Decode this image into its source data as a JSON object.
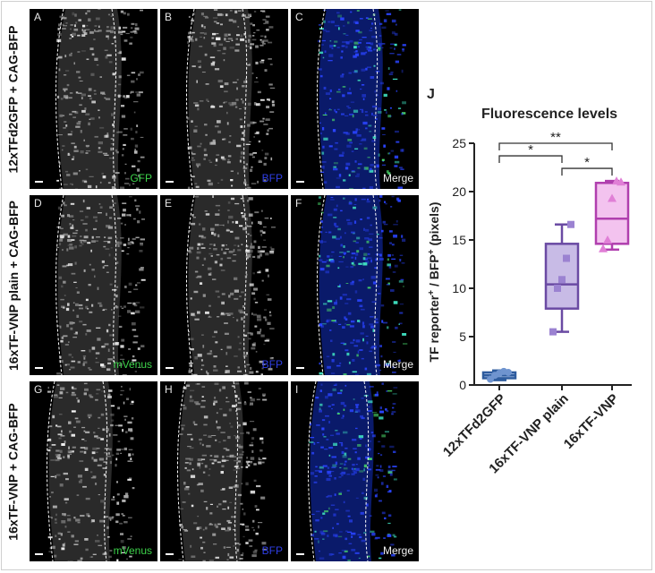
{
  "figure": {
    "rows": [
      {
        "label": "12xTFd2GFP + CAG-BFP",
        "panels": [
          {
            "letter": "A",
            "channel": "GFP",
            "channel_color": "#3cd24a",
            "tint": "gray"
          },
          {
            "letter": "B",
            "channel": "BFP",
            "channel_color": "#2f3fe6",
            "tint": "gray"
          },
          {
            "letter": "C",
            "channel": "Merge",
            "channel_color": "#f0f0f0",
            "tint": "blue"
          }
        ]
      },
      {
        "label": "16xTF-VNP plain + CAG-BFP",
        "panels": [
          {
            "letter": "D",
            "channel": "mVenus",
            "channel_color": "#3cd24a",
            "tint": "gray"
          },
          {
            "letter": "E",
            "channel": "BFP",
            "channel_color": "#2f3fe6",
            "tint": "gray"
          },
          {
            "letter": "F",
            "channel": "Merge",
            "channel_color": "#f0f0f0",
            "tint": "blue"
          }
        ]
      },
      {
        "label": "16xTF-VNP + CAG-BFP",
        "panels": [
          {
            "letter": "G",
            "channel": "mVenus",
            "channel_color": "#3cd24a",
            "tint": "gray"
          },
          {
            "letter": "H",
            "channel": "BFP",
            "channel_color": "#2f3fe6",
            "tint": "gray"
          },
          {
            "letter": "I",
            "channel": "Merge",
            "channel_color": "#f0f0f0",
            "tint": "blue"
          }
        ]
      }
    ]
  },
  "chart_data": {
    "type": "box",
    "panel_letter": "J",
    "title": "Fluorescence levels",
    "ylabel_parts": [
      "TF reporter",
      "+",
      " / BFP",
      "+",
      " (pixels)"
    ],
    "ylim": [
      0,
      25
    ],
    "yticks": [
      0,
      5,
      10,
      15,
      20,
      25
    ],
    "categories": [
      "12xTFd2GFP",
      "16xTF-VNP plain",
      "16xTF-VNP"
    ],
    "series": [
      {
        "category": "12xTFd2GFP",
        "min": 0.5,
        "q1": 0.7,
        "median": 1.0,
        "q3": 1.3,
        "max": 1.5,
        "points": [
          0.6,
          1.0,
          1.2,
          1.4,
          1.3
        ],
        "color": "#2e5c9e",
        "fill": "#a9c0e6"
      },
      {
        "category": "16xTF-VNP plain",
        "min": 5.5,
        "q1": 7.9,
        "median": 10.4,
        "q3": 14.6,
        "max": 16.6,
        "points": [
          5.5,
          10.0,
          10.9,
          13.1,
          16.6
        ],
        "color": "#6a4aa3",
        "fill": "#c8bbe6"
      },
      {
        "category": "16xTF-VNP",
        "min": 14.0,
        "q1": 14.6,
        "median": 17.2,
        "q3": 20.9,
        "max": 21.1,
        "points": [
          14.1,
          15.0,
          19.3,
          21.1,
          21.0
        ],
        "color": "#b03fae",
        "fill": "#f3c3ef"
      }
    ],
    "significance": [
      {
        "from": 0,
        "to": 2,
        "label": "**",
        "level": 25.0
      },
      {
        "from": 0,
        "to": 1,
        "label": "*",
        "level": 23.7
      },
      {
        "from": 1,
        "to": 2,
        "label": "*",
        "level": 22.4
      }
    ]
  }
}
